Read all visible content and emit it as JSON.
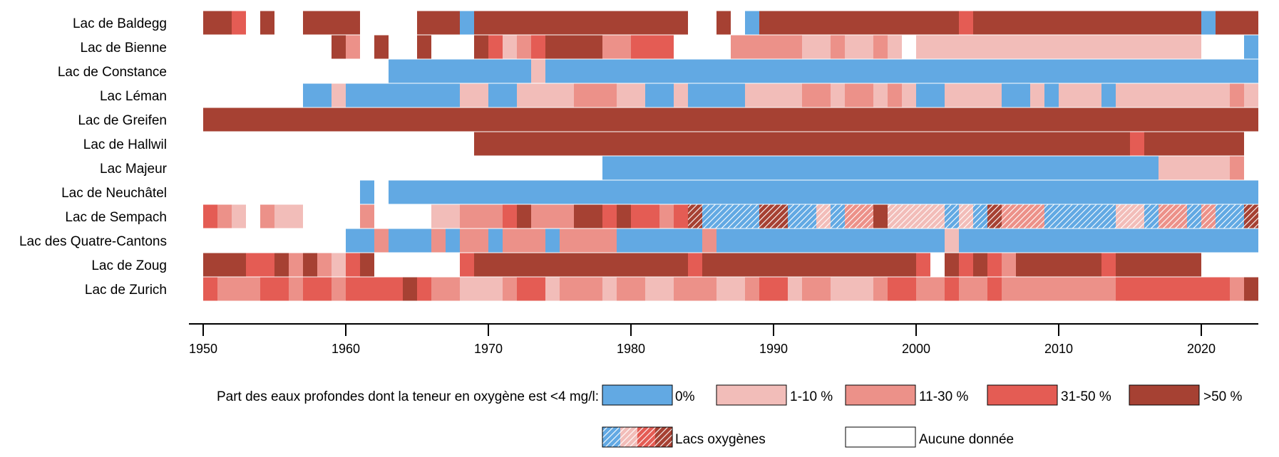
{
  "chart_data": {
    "type": "timeline",
    "x_range": [
      1950,
      2024
    ],
    "ticks": [
      1950,
      1960,
      1970,
      1980,
      1990,
      2000,
      2010,
      2020
    ],
    "categories": [
      {
        "key": "c0",
        "label": "0%",
        "color": "#62a9e3"
      },
      {
        "key": "c1",
        "label": "1-10 %",
        "color": "#f2bdb9"
      },
      {
        "key": "c2",
        "label": "11-30 %",
        "color": "#ec9189"
      },
      {
        "key": "c3",
        "label": "31-50 %",
        "color": "#e45c54"
      },
      {
        "key": "c4",
        "label": ">50 %",
        "color": "#a64133"
      }
    ],
    "legend_title": "Part des eaux profondes dont la teneur en oxygène est <4 mg/l:",
    "legend_oxygenated": "Lacs oxygènes",
    "legend_nodata": "Aucune donnée",
    "lakes": [
      {
        "name": "Lac de Baldegg",
        "segments": [
          [
            1950,
            1952,
            "c4"
          ],
          [
            1952,
            1953,
            "c3"
          ],
          [
            1954,
            1955,
            "c4"
          ],
          [
            1957,
            1961,
            "c4"
          ],
          [
            1965,
            1968,
            "c4"
          ],
          [
            1968,
            1969,
            "c0"
          ],
          [
            1969,
            1984,
            "c4"
          ],
          [
            1986,
            1987,
            "c4"
          ],
          [
            1988,
            1989,
            "c0"
          ],
          [
            1989,
            2003,
            "c4"
          ],
          [
            2003,
            2004,
            "c3"
          ],
          [
            2004,
            2020,
            "c4"
          ],
          [
            2020,
            2021,
            "c0"
          ],
          [
            2021,
            2024,
            "c4"
          ]
        ]
      },
      {
        "name": "Lac de Bienne",
        "segments": [
          [
            1959,
            1960,
            "c4"
          ],
          [
            1960,
            1961,
            "c2"
          ],
          [
            1962,
            1963,
            "c4"
          ],
          [
            1965,
            1966,
            "c4"
          ],
          [
            1969,
            1970,
            "c4"
          ],
          [
            1970,
            1971,
            "c3"
          ],
          [
            1971,
            1972,
            "c1"
          ],
          [
            1972,
            1973,
            "c2"
          ],
          [
            1973,
            1974,
            "c3"
          ],
          [
            1974,
            1978,
            "c4"
          ],
          [
            1978,
            1980,
            "c2"
          ],
          [
            1980,
            1983,
            "c3"
          ],
          [
            1987,
            1992,
            "c2"
          ],
          [
            1992,
            1994,
            "c1"
          ],
          [
            1994,
            1995,
            "c2"
          ],
          [
            1995,
            1997,
            "c1"
          ],
          [
            1997,
            1998,
            "c2"
          ],
          [
            1998,
            1999,
            "c1"
          ],
          [
            2000,
            2020,
            "c1"
          ],
          [
            2023,
            2024,
            "c0"
          ]
        ]
      },
      {
        "name": "Lac de Constance",
        "segments": [
          [
            1963,
            1973,
            "c0"
          ],
          [
            1973,
            1974,
            "c1"
          ],
          [
            1974,
            2024,
            "c0"
          ]
        ]
      },
      {
        "name": "Lac Léman",
        "segments": [
          [
            1957,
            1959,
            "c0"
          ],
          [
            1959,
            1960,
            "c1"
          ],
          [
            1960,
            1968,
            "c0"
          ],
          [
            1968,
            1970,
            "c1"
          ],
          [
            1970,
            1972,
            "c0"
          ],
          [
            1972,
            1976,
            "c1"
          ],
          [
            1976,
            1979,
            "c2"
          ],
          [
            1979,
            1981,
            "c1"
          ],
          [
            1981,
            1983,
            "c0"
          ],
          [
            1983,
            1984,
            "c1"
          ],
          [
            1984,
            1988,
            "c0"
          ],
          [
            1988,
            1992,
            "c1"
          ],
          [
            1992,
            1994,
            "c2"
          ],
          [
            1994,
            1995,
            "c1"
          ],
          [
            1995,
            1997,
            "c2"
          ],
          [
            1997,
            1998,
            "c1"
          ],
          [
            1998,
            1999,
            "c2"
          ],
          [
            1999,
            2000,
            "c1"
          ],
          [
            2000,
            2002,
            "c0"
          ],
          [
            2002,
            2006,
            "c1"
          ],
          [
            2006,
            2008,
            "c0"
          ],
          [
            2008,
            2009,
            "c1"
          ],
          [
            2009,
            2010,
            "c0"
          ],
          [
            2010,
            2013,
            "c1"
          ],
          [
            2013,
            2014,
            "c0"
          ],
          [
            2014,
            2022,
            "c1"
          ],
          [
            2022,
            2023,
            "c2"
          ],
          [
            2023,
            2024,
            "c1"
          ]
        ]
      },
      {
        "name": "Lac de Greifen",
        "segments": [
          [
            1950,
            2024,
            "c4"
          ]
        ]
      },
      {
        "name": "Lac de Hallwil",
        "segments": [
          [
            1969,
            2015,
            "c4"
          ],
          [
            2015,
            2016,
            "c3"
          ],
          [
            2016,
            2023,
            "c4"
          ]
        ]
      },
      {
        "name": "Lac Majeur",
        "segments": [
          [
            1978,
            2017,
            "c0"
          ],
          [
            2017,
            2022,
            "c1"
          ],
          [
            2022,
            2023,
            "c2"
          ]
        ]
      },
      {
        "name": "Lac de Neuchâtel",
        "segments": [
          [
            1961,
            1962,
            "c0"
          ],
          [
            1963,
            2024,
            "c0"
          ]
        ]
      },
      {
        "name": "Lac de Sempach",
        "segments": [
          [
            1950,
            1951,
            "c3"
          ],
          [
            1951,
            1952,
            "c2"
          ],
          [
            1952,
            1953,
            "c1"
          ],
          [
            1954,
            1955,
            "c2"
          ],
          [
            1955,
            1957,
            "c1"
          ],
          [
            1961,
            1962,
            "c2"
          ],
          [
            1966,
            1968,
            "c1"
          ],
          [
            1968,
            1971,
            "c2"
          ],
          [
            1971,
            1972,
            "c3"
          ],
          [
            1972,
            1973,
            "c4"
          ],
          [
            1973,
            1976,
            "c2"
          ],
          [
            1976,
            1978,
            "c4"
          ],
          [
            1978,
            1979,
            "c3"
          ],
          [
            1979,
            1980,
            "c4"
          ],
          [
            1980,
            1982,
            "c3"
          ],
          [
            1982,
            1983,
            "c2"
          ],
          [
            1983,
            1984,
            "c3"
          ],
          [
            1984,
            1985,
            "c4",
            "h"
          ],
          [
            1985,
            1989,
            "c0",
            "h"
          ],
          [
            1989,
            1991,
            "c4",
            "h"
          ],
          [
            1991,
            1993,
            "c0",
            "h"
          ],
          [
            1993,
            1994,
            "c1",
            "h"
          ],
          [
            1994,
            1995,
            "c0",
            "h"
          ],
          [
            1995,
            1997,
            "c2",
            "h"
          ],
          [
            1997,
            1998,
            "c4"
          ],
          [
            1998,
            2002,
            "c1",
            "h"
          ],
          [
            2002,
            2003,
            "c0",
            "h"
          ],
          [
            2003,
            2004,
            "c1",
            "h"
          ],
          [
            2004,
            2005,
            "c0",
            "h"
          ],
          [
            2005,
            2006,
            "c4",
            "h"
          ],
          [
            2006,
            2009,
            "c2",
            "h"
          ],
          [
            2009,
            2014,
            "c0",
            "h"
          ],
          [
            2014,
            2016,
            "c1",
            "h"
          ],
          [
            2016,
            2017,
            "c0",
            "h"
          ],
          [
            2017,
            2019,
            "c2",
            "h"
          ],
          [
            2019,
            2020,
            "c0",
            "h"
          ],
          [
            2020,
            2021,
            "c2",
            "h"
          ],
          [
            2021,
            2023,
            "c0",
            "h"
          ],
          [
            2023,
            2024,
            "c4",
            "h"
          ]
        ]
      },
      {
        "name": "Lac des Quatre-Cantons",
        "segments": [
          [
            1960,
            1962,
            "c0"
          ],
          [
            1962,
            1963,
            "c2"
          ],
          [
            1963,
            1966,
            "c0"
          ],
          [
            1966,
            1967,
            "c2"
          ],
          [
            1967,
            1968,
            "c0"
          ],
          [
            1968,
            1970,
            "c2"
          ],
          [
            1970,
            1971,
            "c0"
          ],
          [
            1971,
            1974,
            "c2"
          ],
          [
            1974,
            1975,
            "c0"
          ],
          [
            1975,
            1979,
            "c2"
          ],
          [
            1979,
            1985,
            "c0"
          ],
          [
            1985,
            1986,
            "c2"
          ],
          [
            1986,
            2002,
            "c0"
          ],
          [
            2002,
            2003,
            "c1"
          ],
          [
            2003,
            2024,
            "c0"
          ]
        ]
      },
      {
        "name": "Lac de Zoug",
        "segments": [
          [
            1950,
            1953,
            "c4"
          ],
          [
            1953,
            1955,
            "c3"
          ],
          [
            1955,
            1956,
            "c4"
          ],
          [
            1956,
            1957,
            "c2"
          ],
          [
            1957,
            1958,
            "c4"
          ],
          [
            1958,
            1959,
            "c2"
          ],
          [
            1959,
            1960,
            "c1"
          ],
          [
            1960,
            1961,
            "c3"
          ],
          [
            1961,
            1962,
            "c4"
          ],
          [
            1968,
            1969,
            "c3"
          ],
          [
            1969,
            1984,
            "c4"
          ],
          [
            1984,
            1985,
            "c3"
          ],
          [
            1985,
            2000,
            "c4"
          ],
          [
            2000,
            2001,
            "c3"
          ],
          [
            2002,
            2003,
            "c4"
          ],
          [
            2003,
            2004,
            "c3"
          ],
          [
            2004,
            2005,
            "c4"
          ],
          [
            2005,
            2006,
            "c3"
          ],
          [
            2006,
            2007,
            "c2"
          ],
          [
            2007,
            2013,
            "c4"
          ],
          [
            2013,
            2014,
            "c3"
          ],
          [
            2014,
            2020,
            "c4"
          ]
        ]
      },
      {
        "name": "Lac de Zurich",
        "segments": [
          [
            1950,
            1951,
            "c3"
          ],
          [
            1951,
            1954,
            "c2"
          ],
          [
            1954,
            1956,
            "c3"
          ],
          [
            1956,
            1957,
            "c2"
          ],
          [
            1957,
            1959,
            "c3"
          ],
          [
            1959,
            1960,
            "c2"
          ],
          [
            1960,
            1964,
            "c3"
          ],
          [
            1964,
            1965,
            "c4"
          ],
          [
            1965,
            1966,
            "c3"
          ],
          [
            1966,
            1968,
            "c2"
          ],
          [
            1968,
            1971,
            "c1"
          ],
          [
            1971,
            1972,
            "c2"
          ],
          [
            1972,
            1974,
            "c3"
          ],
          [
            1974,
            1975,
            "c1"
          ],
          [
            1975,
            1978,
            "c2"
          ],
          [
            1978,
            1979,
            "c1"
          ],
          [
            1979,
            1981,
            "c2"
          ],
          [
            1981,
            1983,
            "c1"
          ],
          [
            1983,
            1986,
            "c2"
          ],
          [
            1986,
            1988,
            "c1"
          ],
          [
            1988,
            1989,
            "c2"
          ],
          [
            1989,
            1991,
            "c3"
          ],
          [
            1991,
            1992,
            "c1"
          ],
          [
            1992,
            1994,
            "c2"
          ],
          [
            1994,
            1997,
            "c1"
          ],
          [
            1997,
            1998,
            "c2"
          ],
          [
            1998,
            2000,
            "c3"
          ],
          [
            2000,
            2002,
            "c2"
          ],
          [
            2002,
            2003,
            "c3"
          ],
          [
            2003,
            2005,
            "c2"
          ],
          [
            2005,
            2006,
            "c3"
          ],
          [
            2006,
            2014,
            "c2"
          ],
          [
            2014,
            2022,
            "c3"
          ],
          [
            2022,
            2023,
            "c2"
          ],
          [
            2023,
            2024,
            "c4"
          ]
        ]
      }
    ]
  }
}
